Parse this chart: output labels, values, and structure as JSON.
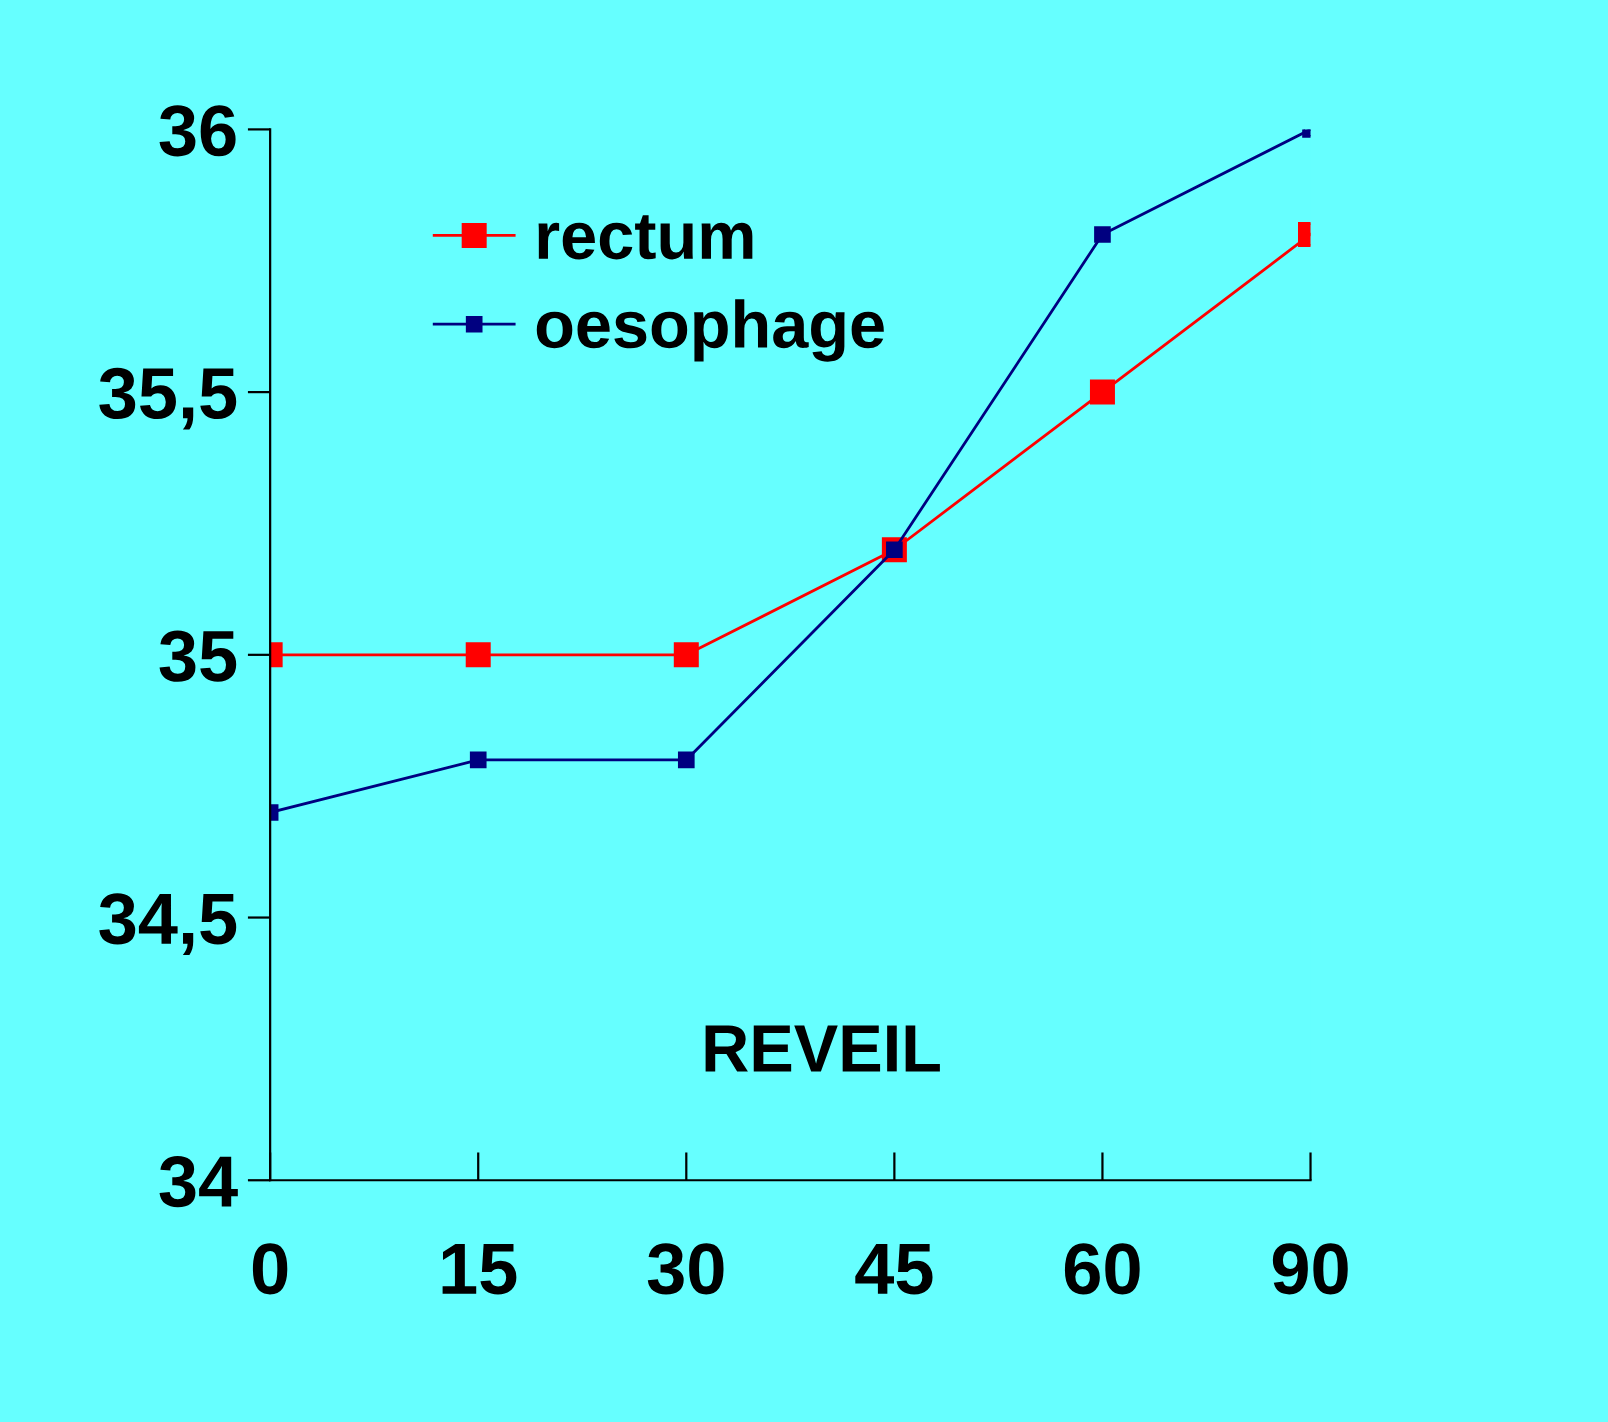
{
  "chart_data": {
    "type": "line",
    "categories": [
      "0",
      "15",
      "30",
      "45",
      "60",
      "90"
    ],
    "series": [
      {
        "name": "rectum",
        "color": "#ff0000",
        "values": [
          35,
          35,
          35,
          35.2,
          35.5,
          35.8
        ]
      },
      {
        "name": "oesophage",
        "color": "#000080",
        "values": [
          34.7,
          34.8,
          34.8,
          35.2,
          35.8,
          36
        ]
      }
    ],
    "ylim": [
      34,
      36
    ],
    "yticks": [
      34,
      {
        "value": 34.5,
        "label": "34,5"
      },
      35,
      {
        "value": 35.5,
        "label": "35,5"
      },
      36
    ],
    "annotations": [
      "REVEIL"
    ],
    "legend": "top left",
    "marker": "square",
    "line_style": "solid",
    "grid": false
  }
}
